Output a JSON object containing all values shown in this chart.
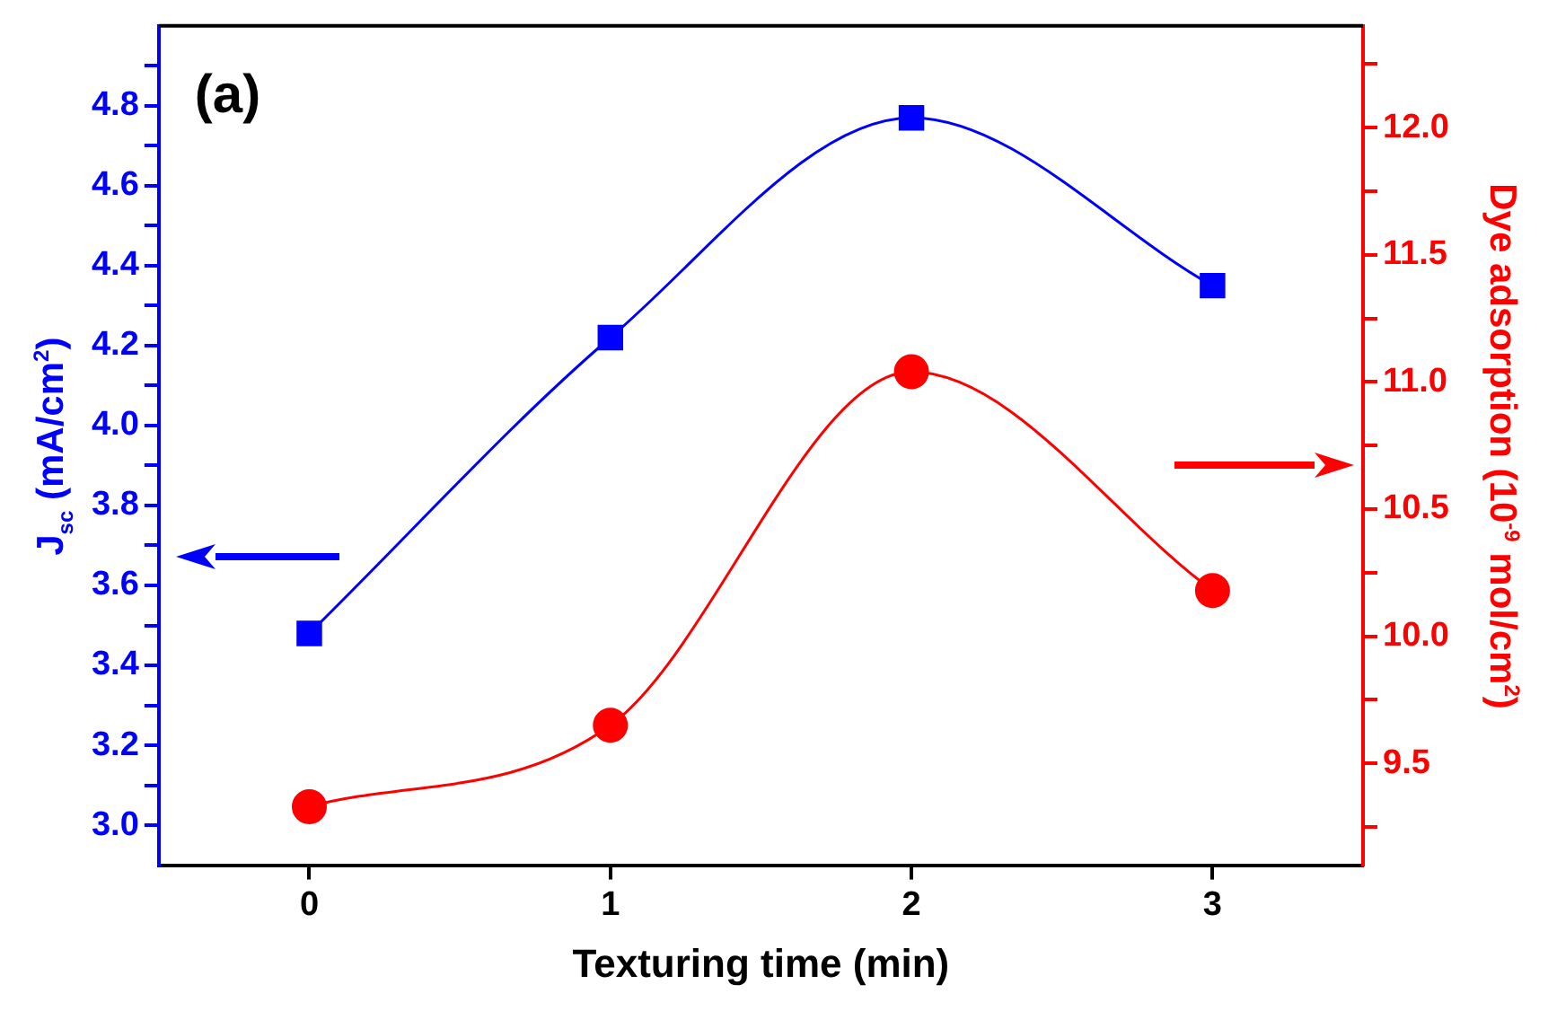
{
  "chart_data": {
    "type": "line",
    "xlabel": "Texturing time (min)",
    "ylabel": "J$_{sc}$ (mA/cm$^{2}$)",
    "y2label": "Dye adsorption (10$^{-9}$ mol/cm$^{2}$)",
    "annotations": [
      "(a)"
    ],
    "x": [
      0,
      1,
      2,
      3
    ],
    "series": [
      {
        "color": "#0000ff",
        "values": [
          3.48,
          4.22,
          4.77,
          4.35
        ],
        "marker": "square"
      },
      {
        "color": "#ff0000",
        "values": [
          9.33,
          9.65,
          11.04,
          10.18
        ],
        "marker": "circle",
        "axis": "y2"
      }
    ],
    "xlim": [
      -0.5,
      3.5
    ],
    "xticks": [
      0,
      1,
      2,
      3
    ],
    "ylim": [
      2.9,
      5.0
    ],
    "yticks": [
      {
        "value": 3.0,
        "label": "3.0"
      },
      {
        "value": 3.1,
        "label": null
      },
      {
        "value": 3.2,
        "label": "3.2"
      },
      {
        "value": 3.3,
        "label": null
      },
      {
        "value": 3.4,
        "label": "3.4"
      },
      {
        "value": 3.5,
        "label": null
      },
      {
        "value": 3.6,
        "label": "3.6"
      },
      {
        "value": 3.7,
        "label": null
      },
      {
        "value": 3.8,
        "label": "3.8"
      },
      {
        "value": 3.9,
        "label": null
      },
      {
        "value": 4.0,
        "label": "4.0"
      },
      {
        "value": 4.1,
        "label": null
      },
      {
        "value": 4.2,
        "label": "4.2"
      },
      {
        "value": 4.3,
        "label": null
      },
      {
        "value": 4.4,
        "label": "4.4"
      },
      {
        "value": 4.5,
        "label": null
      },
      {
        "value": 4.6,
        "label": "4.6"
      },
      {
        "value": 4.7,
        "label": null
      },
      {
        "value": 4.8,
        "label": "4.8"
      },
      {
        "value": 4.9,
        "label": null
      }
    ],
    "y2lim": [
      9.1,
      12.4
    ],
    "y2ticks": [
      {
        "value": 9.25,
        "label": null
      },
      {
        "value": 9.5,
        "label": "9.5"
      },
      {
        "value": 9.75,
        "label": null
      },
      {
        "value": 10.0,
        "label": "10.0"
      },
      {
        "value": 10.25,
        "label": null
      },
      {
        "value": 10.5,
        "label": "10.5"
      },
      {
        "value": 10.75,
        "label": null
      },
      {
        "value": 11.0,
        "label": "11.0"
      },
      {
        "value": 11.25,
        "label": null
      },
      {
        "value": 11.5,
        "label": "11.5"
      },
      {
        "value": 11.75,
        "label": null
      },
      {
        "value": 12.0,
        "label": "12.0"
      },
      {
        "value": 12.25,
        "label": null
      }
    ],
    "grid": false,
    "legend": false
  }
}
